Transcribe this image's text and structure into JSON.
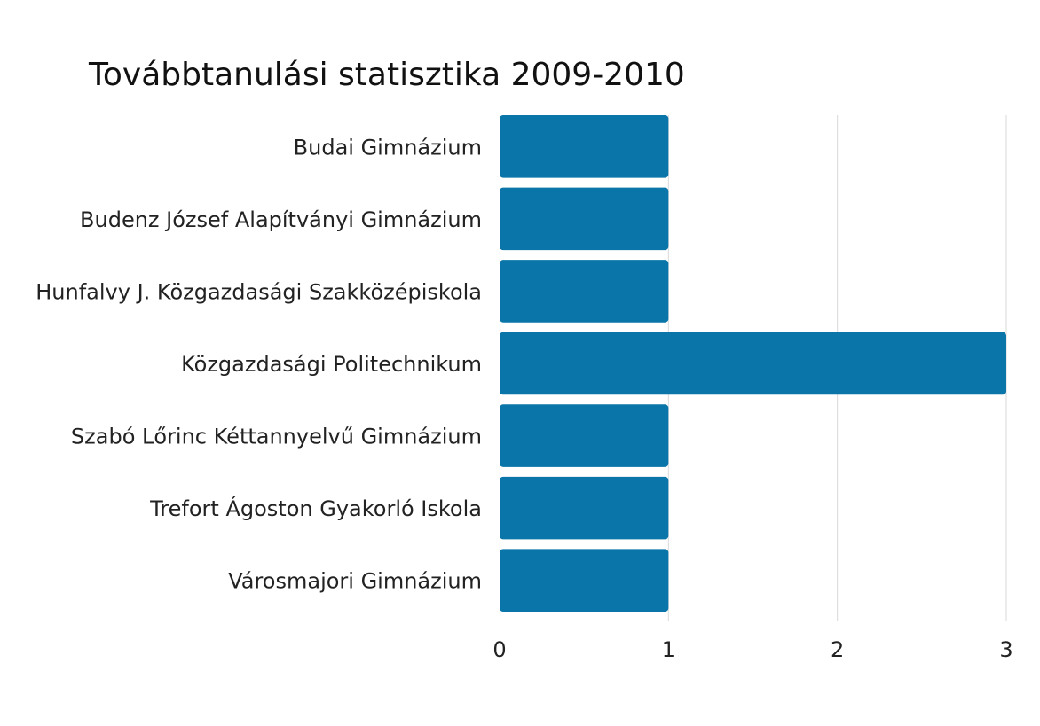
{
  "chart_data": {
    "type": "bar",
    "orientation": "horizontal",
    "title": "Továbbtanulási statisztika 2009-2010",
    "categories": [
      "Budai Gimnázium",
      "Budenz József Alapítványi Gimnázium",
      "Hunfalvy J. Közgazdasági Szakközépiskola",
      "Közgazdasági Politechnikum",
      "Szabó Lőrinc Kéttannyelvű Gimnázium",
      "Trefort Ágoston Gyakorló Iskola",
      "Városmajori Gimnázium"
    ],
    "values": [
      1,
      1,
      1,
      3,
      1,
      1,
      1
    ],
    "xlim": [
      0,
      3
    ],
    "x_ticks": [
      "0",
      "1",
      "2",
      "3"
    ],
    "grid": true,
    "bar_color": "#0a75a8"
  }
}
